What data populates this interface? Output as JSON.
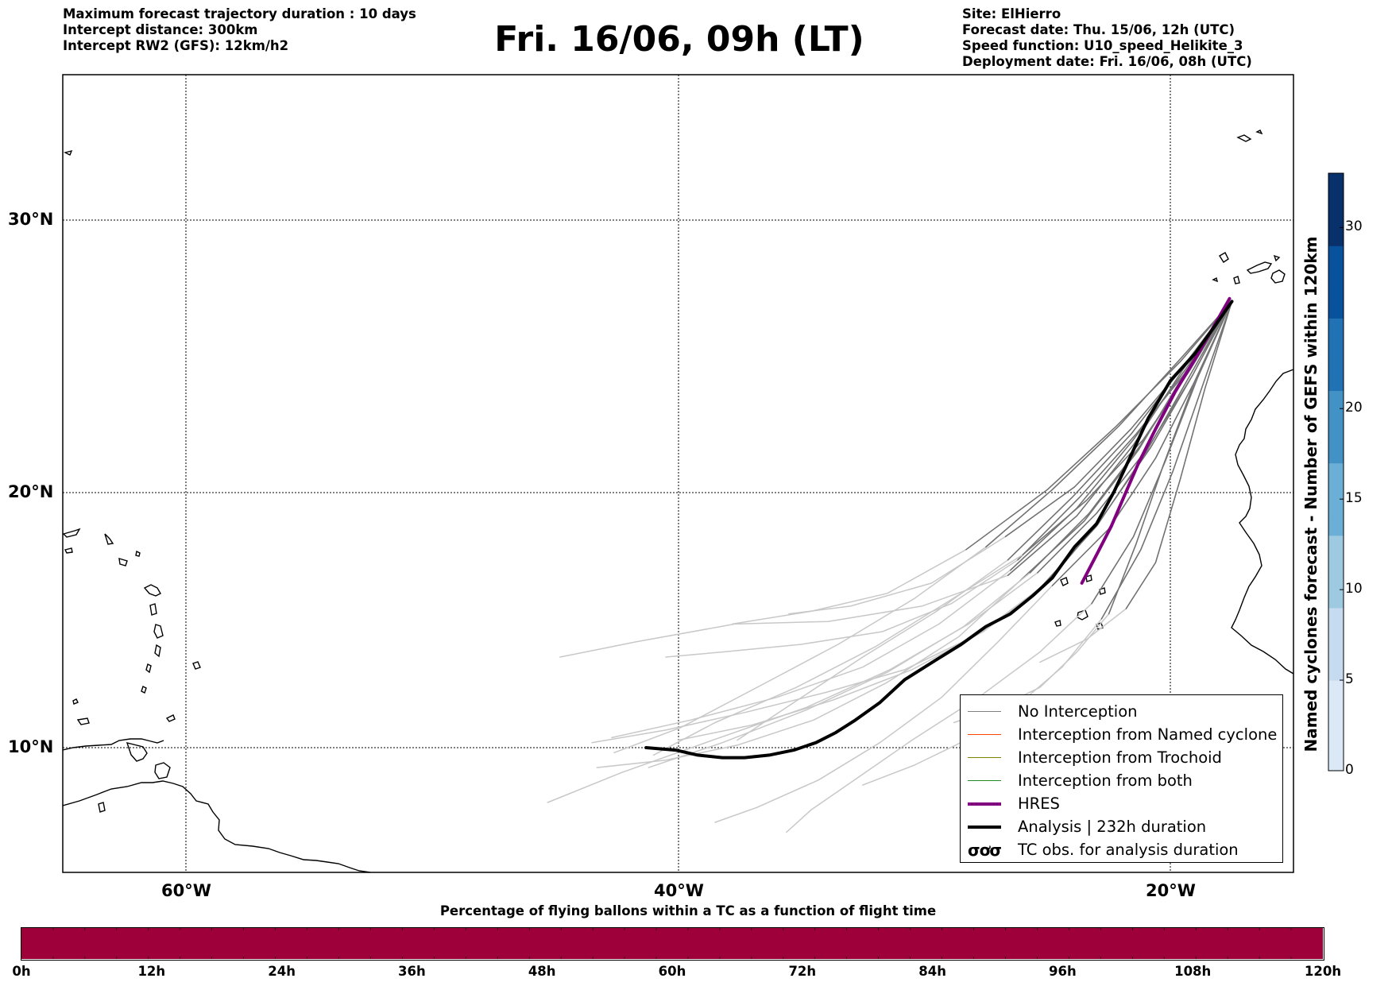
{
  "header": {
    "left_lines": [
      "Maximum forecast trajectory duration : 10 days",
      "Intercept distance: 300km",
      "Intercept RW2 (GFS):  12km/h2"
    ],
    "title": "Fri. 16/06, 09h (LT)",
    "right_lines": [
      "Site: ElHierro",
      "Forecast date: Thu. 15/06, 12h (UTC)",
      "Speed function: U10_speed_Helikite_3",
      "Deployment date: Fri. 16/06, 08h (UTC)"
    ]
  },
  "map": {
    "lat_labels": [
      "30°N",
      "20°N",
      "10°N"
    ],
    "lon_labels": [
      "60°W",
      "40°W",
      "20°W"
    ],
    "lon_range": [
      -65,
      -15
    ],
    "lat_range": [
      4.7,
      34
    ],
    "gridlines": true,
    "site_marker": "ElHierro"
  },
  "legend": {
    "placement": "lower-right",
    "items": [
      {
        "label": "No Interception",
        "color": "#808080",
        "style": "line"
      },
      {
        "label": "Interception from Named cyclone",
        "color": "#ff4500",
        "style": "line"
      },
      {
        "label": "Interception from Trochoid",
        "color": "#808000",
        "style": "line"
      },
      {
        "label": "Interception from both",
        "color": "#228b22",
        "style": "line"
      },
      {
        "label": "HRES",
        "color": "#800080",
        "style": "thick-line"
      },
      {
        "label": "Analysis | 232h duration",
        "color": "#000000",
        "style": "thick-line"
      },
      {
        "label": "TC obs. for analysis duration",
        "glyph": "σơσ",
        "style": "glyph"
      }
    ]
  },
  "colorbar": {
    "title": "Named cyclones forecast - Number of GEFS within 120km",
    "ticks": [
      "0",
      "5",
      "10",
      "15",
      "20",
      "30"
    ],
    "tick_values": [
      0,
      5,
      10,
      15,
      20,
      30
    ],
    "max": 33,
    "colors": [
      "#dbe9f6",
      "#c6dbef",
      "#9ecae1",
      "#6baed6",
      "#4292c6",
      "#2171b5",
      "#08519c",
      "#08306b"
    ]
  },
  "time_bar": {
    "title": "Percentage of flying ballons within a TC as a function of flight time",
    "ticks": [
      "0h",
      "12h",
      "24h",
      "36h",
      "48h",
      "60h",
      "72h",
      "84h",
      "96h",
      "108h",
      "120h"
    ],
    "fill_color": "#9e003a",
    "percent_in_tc": [
      0,
      0,
      0,
      0,
      0,
      0,
      0,
      0,
      0,
      0,
      0,
      0,
      0,
      0,
      0,
      0,
      0,
      0,
      0,
      0,
      0,
      0,
      0,
      0,
      0,
      0,
      0,
      0,
      0,
      0,
      0,
      0,
      0,
      0,
      0,
      0,
      0,
      0,
      0,
      0,
      0
    ]
  },
  "chart_data": {
    "type": "map-trajectories",
    "analysis_track": {
      "lon": [
        -17.5,
        -18.2,
        -19.0,
        -20.0,
        -20.9,
        -21.7,
        -22.3,
        -23.0,
        -23.9,
        -24.8,
        -25.6,
        -26.5,
        -27.5,
        -28.5,
        -29.5,
        -30.8,
        -31.8,
        -32.8,
        -33.6,
        -34.4,
        -35.3,
        -36.3,
        -37.3,
        -38.2,
        -39.2,
        -40.1,
        -41.3
      ],
      "lat": [
        27.1,
        26.2,
        25.2,
        24.2,
        22.8,
        21.2,
        20.0,
        18.8,
        17.9,
        16.7,
        16.0,
        15.3,
        14.8,
        14.1,
        13.5,
        12.7,
        11.8,
        11.1,
        10.6,
        10.2,
        9.9,
        9.7,
        9.6,
        9.6,
        9.7,
        9.9,
        10.0
      ]
    },
    "hres_track": {
      "lon": [
        -17.6,
        -18.3,
        -19.0,
        -19.8,
        -20.6,
        -21.3,
        -21.9,
        -22.4,
        -23.0,
        -23.6
      ],
      "lat": [
        27.2,
        26.1,
        25.0,
        23.8,
        22.4,
        21.1,
        19.8,
        18.7,
        17.6,
        16.5
      ]
    },
    "ensemble_tracks": [
      {
        "lon": [
          -17.5,
          -19.4,
          -21.6,
          -23.9,
          -26.7,
          -29.7,
          -33.0,
          -35.5
        ],
        "lat": [
          27.1,
          24.8,
          22.4,
          20.2,
          18.3,
          16.5,
          15.6,
          15.3
        ]
      },
      {
        "lon": [
          -17.5,
          -19.6,
          -22.2,
          -25.0,
          -28.3,
          -31.5,
          -34.6,
          -37.8
        ],
        "lat": [
          27.1,
          24.9,
          22.5,
          20.1,
          17.8,
          16.1,
          15.4,
          14.9
        ]
      },
      {
        "lon": [
          -17.5,
          -19.3,
          -21.4,
          -23.7,
          -26.2,
          -28.9,
          -31.7,
          -35.0,
          -38.2,
          -40.5
        ],
        "lat": [
          27.1,
          24.6,
          22.2,
          19.8,
          17.4,
          15.7,
          14.6,
          14.1,
          13.8,
          13.6
        ]
      },
      {
        "lon": [
          -17.5,
          -19.5,
          -21.5,
          -23.8,
          -26.6,
          -30.1,
          -33.9,
          -37.7,
          -41.7,
          -44.8
        ],
        "lat": [
          27.1,
          24.6,
          21.8,
          19.1,
          16.8,
          15.6,
          15.0,
          14.9,
          14.2,
          13.6
        ]
      },
      {
        "lon": [
          -17.5,
          -19.2,
          -21.0,
          -23.0,
          -25.3,
          -27.8,
          -30.8,
          -34.0,
          -37.3,
          -40.5,
          -43.5
        ],
        "lat": [
          27.1,
          24.4,
          21.5,
          18.7,
          16.3,
          14.5,
          13.1,
          12.2,
          11.4,
          10.7,
          10.2
        ]
      },
      {
        "lon": [
          -17.5,
          -19.4,
          -21.3,
          -23.5,
          -26.1,
          -28.6,
          -31.5,
          -34.5,
          -37.6,
          -40.5,
          -43.3
        ],
        "lat": [
          27.1,
          24.5,
          21.6,
          18.9,
          16.6,
          14.4,
          12.6,
          11.1,
          10.1,
          9.5,
          9.2
        ]
      },
      {
        "lon": [
          -17.5,
          -19.0,
          -20.6,
          -22.5,
          -24.8,
          -27.0,
          -29.3,
          -31.8,
          -34.3,
          -36.8,
          -38.5
        ],
        "lat": [
          27.1,
          24.2,
          21.3,
          18.6,
          16.4,
          14.2,
          12.0,
          10.2,
          8.7,
          7.6,
          7.0
        ]
      },
      {
        "lon": [
          -17.5,
          -18.9,
          -20.2,
          -21.5,
          -23.2,
          -25.3,
          -27.8,
          -30.5,
          -32.7,
          -34.6,
          -35.6
        ],
        "lat": [
          27.1,
          24.3,
          21.2,
          18.3,
          15.7,
          13.8,
          12.0,
          10.3,
          8.8,
          7.5,
          6.6
        ]
      },
      {
        "lon": [
          -17.5,
          -19.1,
          -20.9,
          -23.0,
          -25.4,
          -28.2,
          -31.4,
          -34.8,
          -38.6,
          -42.3,
          -45.3
        ],
        "lat": [
          27.1,
          24.4,
          21.7,
          19.2,
          16.9,
          14.9,
          13.1,
          11.6,
          10.3,
          9.0,
          7.8
        ]
      },
      {
        "lon": [
          -17.5,
          -19.3,
          -21.2,
          -23.3,
          -25.7,
          -28.4,
          -31.5,
          -34.8,
          -38.2,
          -41.2
        ],
        "lat": [
          27.1,
          24.5,
          21.8,
          19.2,
          16.9,
          14.8,
          13.0,
          11.5,
          10.2,
          9.2
        ]
      },
      {
        "lon": [
          -17.5,
          -19.5,
          -21.6,
          -24.0,
          -26.6,
          -29.5,
          -32.5,
          -35.3,
          -37.6
        ],
        "lat": [
          27.1,
          24.7,
          22.2,
          19.8,
          17.4,
          15.4,
          13.6,
          11.8,
          10.3
        ]
      },
      {
        "lon": [
          -17.5,
          -19.7,
          -22.1,
          -24.8,
          -27.5,
          -30.4,
          -33.5,
          -36.6,
          -39.9,
          -42.6
        ],
        "lat": [
          27.1,
          24.9,
          22.5,
          20.1,
          17.9,
          15.9,
          14.1,
          12.5,
          10.8,
          9.8
        ]
      },
      {
        "lon": [
          -17.5,
          -19.0,
          -20.3,
          -21.4,
          -22.5,
          -23.8,
          -25.3,
          -27.0,
          -28.8
        ],
        "lat": [
          27.1,
          24.2,
          21.0,
          18.0,
          15.3,
          13.8,
          12.4,
          11.6,
          11.0
        ]
      },
      {
        "lon": [
          -17.5,
          -18.7,
          -19.9,
          -21.2,
          -22.8,
          -24.4,
          -26.2,
          -28.1,
          -30.4,
          -32.5
        ],
        "lat": [
          27.1,
          24.0,
          20.8,
          17.8,
          15.1,
          13.2,
          11.7,
          10.4,
          9.3,
          8.5
        ]
      },
      {
        "lon": [
          -17.5,
          -19.2,
          -21.1,
          -23.4,
          -26.0,
          -29.0,
          -32.0,
          -35.2,
          -38.5,
          -41.0
        ],
        "lat": [
          27.1,
          24.6,
          22.0,
          19.7,
          17.6,
          15.8,
          14.0,
          12.4,
          11.0,
          9.7
        ]
      },
      {
        "lon": [
          -17.5,
          -18.6,
          -19.6,
          -20.6,
          -21.8,
          -23.4,
          -25.3
        ],
        "lat": [
          27.1,
          23.9,
          20.5,
          17.3,
          15.5,
          14.3,
          13.4
        ]
      },
      {
        "lon": [
          -17.5,
          -19.4,
          -21.5,
          -23.8,
          -26.5,
          -29.4,
          -32.5,
          -36.0,
          -39.5,
          -42.7
        ],
        "lat": [
          27.1,
          24.6,
          22.0,
          19.4,
          17.0,
          14.9,
          13.2,
          12.0,
          11.1,
          10.4
        ]
      },
      {
        "lon": [
          -17.5,
          -19.1,
          -20.8,
          -22.8,
          -25.0,
          -27.6,
          -30.5,
          -33.7,
          -37.0,
          -40.0
        ],
        "lat": [
          27.1,
          24.4,
          21.7,
          19.0,
          16.5,
          14.6,
          13.1,
          11.9,
          10.9,
          10.3
        ]
      }
    ]
  }
}
